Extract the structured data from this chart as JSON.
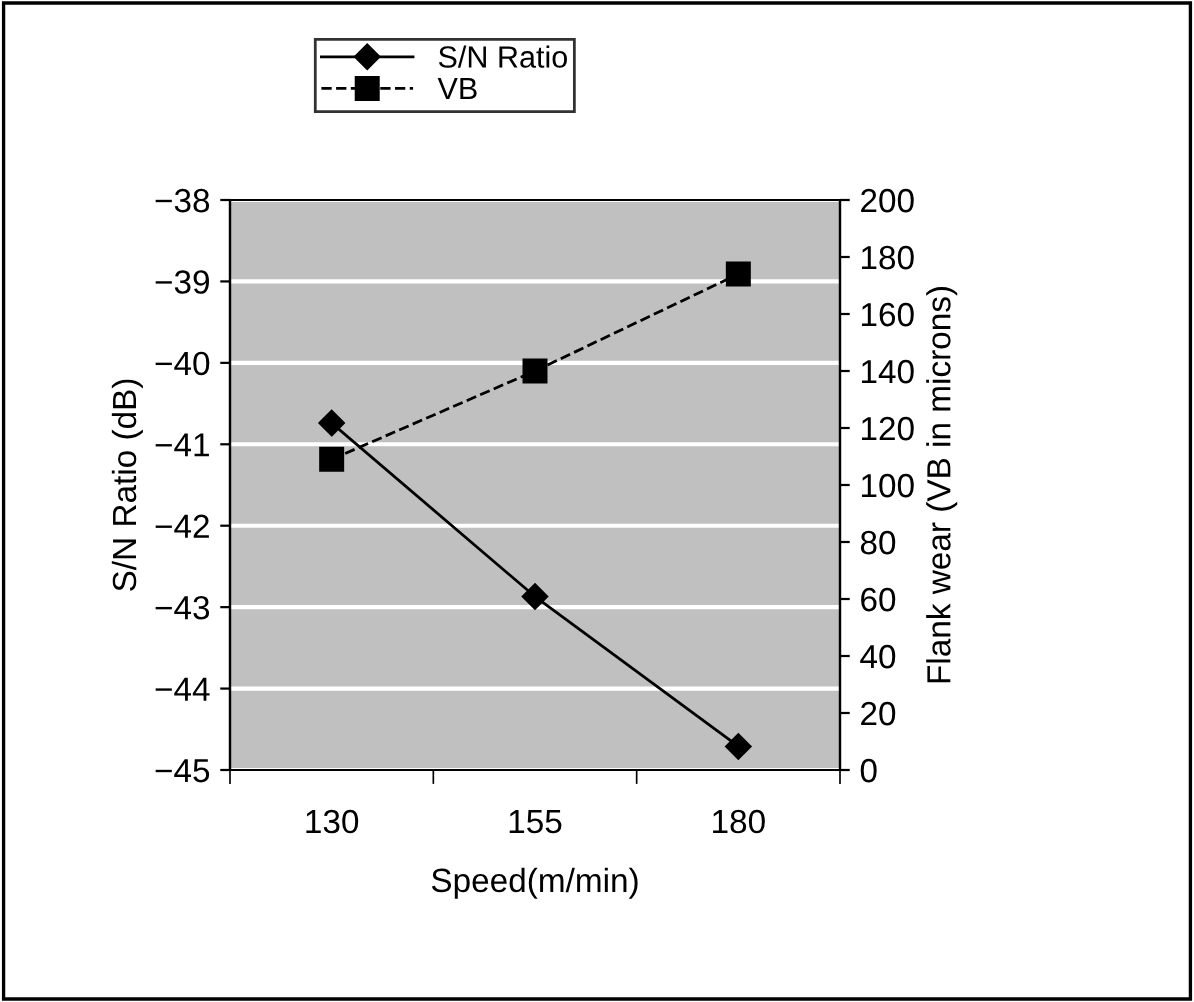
{
  "chart_data": {
    "type": "line",
    "xlabel": "Speed(m/min)",
    "ylabel": "S/N Ratio (dB)",
    "y2label": "Flank wear (VB in microns)",
    "categories": [
      "130",
      "155",
      "180"
    ],
    "series": [
      {
        "name": "S/N Ratio",
        "color": "#000000",
        "values": [
          -40.74,
          -42.87,
          -44.71
        ],
        "marker": "diamond",
        "line_style": "solid"
      },
      {
        "name": "VB",
        "color": "#000000",
        "values": [
          109,
          140,
          174
        ],
        "marker": "square",
        "line_style": "dashed",
        "axis": "y2"
      }
    ],
    "ylim": [
      -45,
      -38
    ],
    "yticks": [
      -45,
      -44,
      -43,
      -42,
      -41,
      -40,
      -39,
      -38
    ],
    "y2lim": [
      0,
      200
    ],
    "y2ticks": [
      0,
      20,
      40,
      60,
      80,
      100,
      120,
      140,
      160,
      180,
      200
    ],
    "grid": "y",
    "legend": "top left"
  }
}
